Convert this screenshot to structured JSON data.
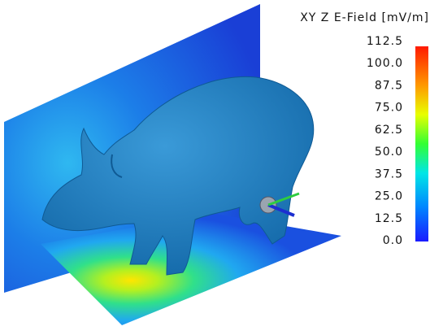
{
  "legend": {
    "title": "XY Z E-Field [mV/m]",
    "ticks": [
      "112.5",
      "100.0",
      "87.5",
      "75.0",
      "62.5",
      "50.0",
      "37.5",
      "25.0",
      "12.5",
      "0.0"
    ]
  }
}
